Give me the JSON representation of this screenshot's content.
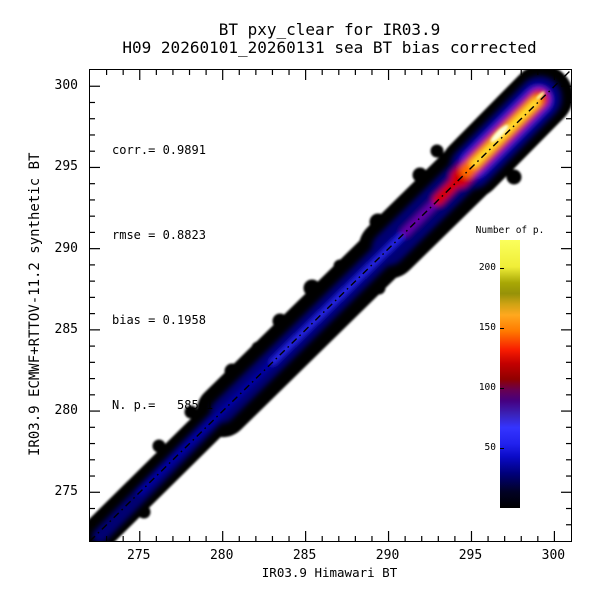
{
  "title": {
    "line1": "BT pxy_clear for IR03.9",
    "line2": "H09 20260101_20260131 sea BT bias corrected"
  },
  "stats": {
    "lines": [
      "corr.= 0.9891",
      "rmse = 0.8823",
      "bias = 0.1958",
      "N. p.=   58541"
    ],
    "corr": "0.9891",
    "rmse": "0.8823",
    "bias": "0.1958",
    "n_points": "58541"
  },
  "axes": {
    "x": {
      "label": "IR03.9 Himawari BT",
      "range": [
        272,
        301
      ],
      "major_ticks": [
        275,
        280,
        285,
        290,
        295,
        300
      ],
      "minor_tick_step": 1
    },
    "y": {
      "label": "IR03.9 ECMWF+RTTOV-11.2 synthetic BT",
      "range": [
        272,
        301
      ],
      "major_ticks": [
        275,
        280,
        285,
        290,
        295,
        300
      ],
      "minor_tick_step": 1
    }
  },
  "colorbar": {
    "title": "Number of p.",
    "ticks": [
      50,
      100,
      150,
      200
    ],
    "range": [
      0,
      223
    ],
    "gradient": [
      {
        "at": 0,
        "color": "#000000"
      },
      {
        "at": 6,
        "color": "#010124"
      },
      {
        "at": 13,
        "color": "#00007c"
      },
      {
        "at": 19,
        "color": "#0a0ac6"
      },
      {
        "at": 24,
        "color": "#2222ee"
      },
      {
        "at": 30,
        "color": "#3434ff"
      },
      {
        "at": 35,
        "color": "#3a22b8"
      },
      {
        "at": 40,
        "color": "#460080"
      },
      {
        "at": 44,
        "color": "#670052"
      },
      {
        "at": 48,
        "color": "#900000"
      },
      {
        "at": 54,
        "color": "#c40000"
      },
      {
        "at": 59,
        "color": "#f81c00"
      },
      {
        "at": 66,
        "color": "#ff7a00"
      },
      {
        "at": 72,
        "color": "#ffa81e"
      },
      {
        "at": 76,
        "color": "#d0a314"
      },
      {
        "at": 80,
        "color": "#969208"
      },
      {
        "at": 84,
        "color": "#a8a705"
      },
      {
        "at": 90,
        "color": "#f0ee38"
      },
      {
        "at": 100,
        "color": "#fbff5c"
      }
    ]
  },
  "chart_data": {
    "type": "heatmap",
    "title": "BT pxy_clear for IR03.9",
    "subtitle": "H09 20260101_20260131 sea BT bias corrected",
    "xlabel": "IR03.9 Himawari BT",
    "ylabel": "IR03.9 ECMWF+RTTOV-11.2 synthetic BT",
    "xlim": [
      272,
      301
    ],
    "ylim": [
      272,
      301
    ],
    "x_major_ticks": [
      275,
      280,
      285,
      290,
      295,
      300
    ],
    "y_major_ticks": [
      275,
      280,
      285,
      290,
      295,
      300
    ],
    "grid": false,
    "legend_position": "colorbar right, inside plot",
    "colorbar_label": "Number of p.",
    "colorbar_ticks": [
      50,
      100,
      150,
      200
    ],
    "colorbar_range": [
      0,
      223
    ],
    "identity_line": {
      "style": "dash-dot",
      "from": [
        272,
        272
      ],
      "to": [
        301,
        301
      ]
    },
    "statistics": {
      "corr": 0.9891,
      "rmse": 0.8823,
      "bias": 0.1958,
      "n_points": 58541
    },
    "density_ridge_along_diagonal": [
      {
        "bt": 273,
        "count": 15
      },
      {
        "bt": 277,
        "count": 35
      },
      {
        "bt": 282,
        "count": 50
      },
      {
        "bt": 287,
        "count": 55
      },
      {
        "bt": 290,
        "count": 65
      },
      {
        "bt": 292,
        "count": 80
      },
      {
        "bt": 293.5,
        "count": 110
      },
      {
        "bt": 295,
        "count": 150
      },
      {
        "bt": 296.8,
        "count": 220
      },
      {
        "bt": 298,
        "count": 195
      },
      {
        "bt": 299.2,
        "count": 170
      },
      {
        "bt": 300.3,
        "count": 40
      }
    ],
    "band_halfwidth_K": [
      {
        "bt": 275,
        "halfwidth": 1.1
      },
      {
        "bt": 285,
        "halfwidth": 1.7
      },
      {
        "bt": 290,
        "halfwidth": 1.9
      },
      {
        "bt": 297,
        "halfwidth": 1.9
      },
      {
        "bt": 300,
        "halfwidth": 1.0
      }
    ]
  }
}
